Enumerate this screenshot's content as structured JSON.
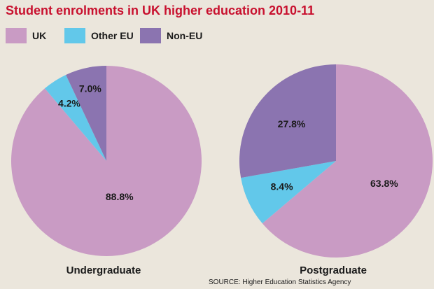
{
  "title": "Student enrolments in UK higher education 2010-11",
  "legend": [
    {
      "label": "UK",
      "color": "#c99bc4"
    },
    {
      "label": "Other EU",
      "color": "#62c8ea"
    },
    {
      "label": "Non-EU",
      "color": "#8b74b0"
    }
  ],
  "source": "SOURCE: Higher Education Statistics Agency",
  "chart_data": [
    {
      "type": "pie",
      "title": "Undergraduate",
      "categories": [
        "UK",
        "Other EU",
        "Non-EU"
      ],
      "values": [
        88.8,
        4.2,
        7.0
      ],
      "labels": [
        "88.8%",
        "4.2%",
        "7.0%"
      ],
      "colors": [
        "#c99bc4",
        "#62c8ea",
        "#8b74b0"
      ]
    },
    {
      "type": "pie",
      "title": "Postgraduate",
      "categories": [
        "UK",
        "Other EU",
        "Non-EU"
      ],
      "values": [
        63.8,
        8.4,
        27.8
      ],
      "labels": [
        "63.8%",
        "8.4%",
        "27.8%"
      ],
      "colors": [
        "#c99bc4",
        "#62c8ea",
        "#8b74b0"
      ]
    }
  ]
}
